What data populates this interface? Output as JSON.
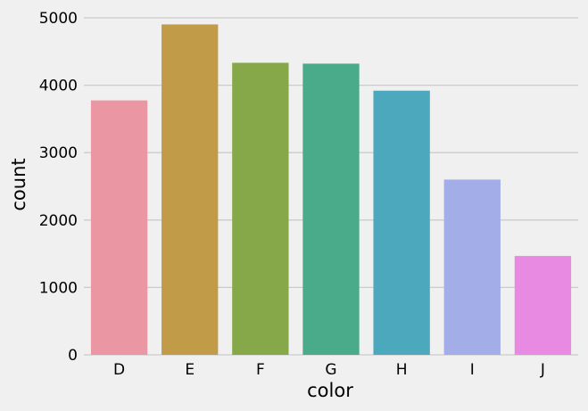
{
  "chart_data": {
    "type": "bar",
    "title": "",
    "xlabel": "color",
    "ylabel": "count",
    "categories": [
      "D",
      "E",
      "F",
      "G",
      "H",
      "I",
      "J"
    ],
    "values": [
      3775,
      4902,
      4333,
      4320,
      3919,
      2600,
      1467
    ],
    "colors": [
      "#ea96a3",
      "#c29b49",
      "#86a848",
      "#4aab8b",
      "#4ca8bd",
      "#a3aee9",
      "#e88ae2"
    ],
    "ylim": [
      0,
      5000
    ],
    "yticks": [
      0,
      1000,
      2000,
      3000,
      4000,
      5000
    ],
    "grid": "horizontal"
  }
}
